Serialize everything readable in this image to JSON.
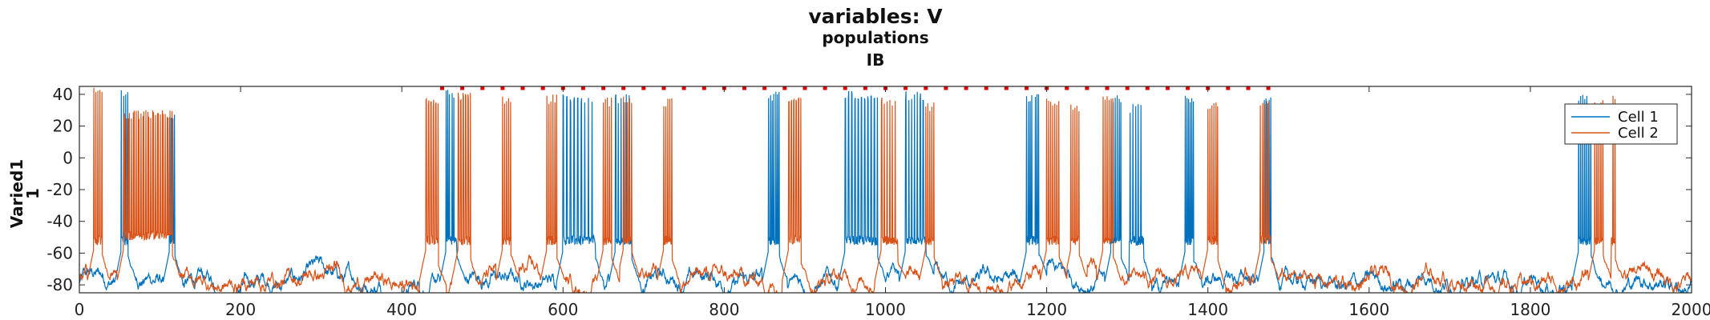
{
  "chart_data": {
    "type": "line",
    "title": "variables: V",
    "subtitle_1": "populations",
    "subtitle_2": "IB",
    "ylabel_1": "Varied1",
    "ylabel_2": "1",
    "xlabel": "",
    "xlim": [
      0,
      2000
    ],
    "ylim": [
      -85,
      45
    ],
    "xticks": [
      0,
      200,
      400,
      600,
      800,
      1000,
      1200,
      1400,
      1600,
      1800,
      2000
    ],
    "yticks": [
      40,
      20,
      0,
      -20,
      -40,
      -60,
      -80
    ],
    "grid": false,
    "legend_position": "top-right",
    "series": [
      {
        "name": "Cell 1",
        "color": "#0072BD",
        "baseline": -78,
        "bursts": [
          [
            52,
            60,
            44,
            3
          ],
          [
            112,
            118,
            30,
            3
          ],
          [
            455,
            468,
            43,
            7
          ],
          [
            600,
            640,
            40,
            9
          ],
          [
            665,
            685,
            40,
            6
          ],
          [
            855,
            868,
            42,
            6
          ],
          [
            950,
            990,
            42,
            10
          ],
          [
            1025,
            1050,
            42,
            7
          ],
          [
            1175,
            1190,
            41,
            7
          ],
          [
            1280,
            1292,
            41,
            5
          ],
          [
            1300,
            1320,
            34,
            6
          ],
          [
            1372,
            1382,
            40,
            5
          ],
          [
            1470,
            1478,
            40,
            4
          ],
          [
            1860,
            1875,
            40,
            6
          ]
        ]
      },
      {
        "name": "Cell 2",
        "color": "#D95319",
        "baseline": -77,
        "bursts": [
          [
            18,
            28,
            45,
            4
          ],
          [
            55,
            115,
            30,
            70
          ],
          [
            430,
            445,
            38,
            5
          ],
          [
            470,
            485,
            42,
            5
          ],
          [
            525,
            535,
            40,
            4
          ],
          [
            580,
            592,
            40,
            5
          ],
          [
            650,
            660,
            38,
            4
          ],
          [
            675,
            685,
            40,
            4
          ],
          [
            725,
            735,
            38,
            4
          ],
          [
            880,
            895,
            38,
            5
          ],
          [
            995,
            1015,
            38,
            6
          ],
          [
            1050,
            1060,
            35,
            4
          ],
          [
            1200,
            1215,
            38,
            6
          ],
          [
            1230,
            1240,
            35,
            4
          ],
          [
            1270,
            1282,
            40,
            5
          ],
          [
            1400,
            1412,
            36,
            5
          ],
          [
            1465,
            1478,
            38,
            5
          ],
          [
            1880,
            1890,
            38,
            4
          ],
          [
            1895,
            1905,
            42,
            4
          ]
        ]
      }
    ],
    "markers": {
      "color": "#E00000",
      "y": 44,
      "x_start": 450,
      "x_end": 1480,
      "spacing": 25
    }
  }
}
